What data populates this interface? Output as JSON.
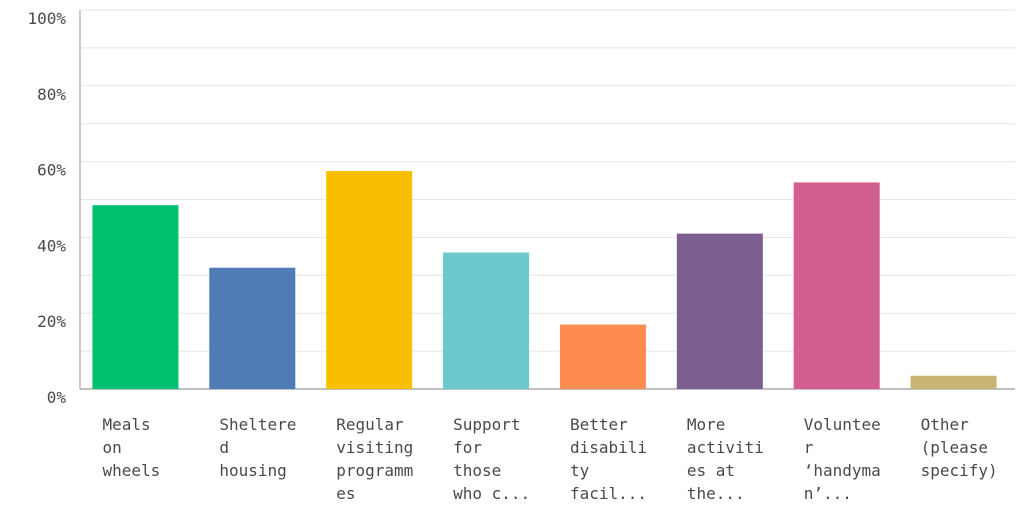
{
  "chart_data": {
    "type": "bar",
    "title": "",
    "xlabel": "",
    "ylabel": "",
    "ylim": [
      0,
      100
    ],
    "y_ticks": [
      {
        "value": 0,
        "label": "0%"
      },
      {
        "value": 20,
        "label": "20%"
      },
      {
        "value": 40,
        "label": "40%"
      },
      {
        "value": 60,
        "label": "60%"
      },
      {
        "value": 80,
        "label": "80%"
      },
      {
        "value": 100,
        "label": "100%"
      }
    ],
    "grid": true,
    "legend": "none",
    "categories": [
      {
        "lines": [
          "Meals",
          "on",
          "wheels"
        ],
        "value": 48.5,
        "color": "#00bf6f"
      },
      {
        "lines": [
          "Sheltere",
          "d",
          "housing"
        ],
        "value": 32,
        "color": "#507cb6"
      },
      {
        "lines": [
          "Regular",
          "visiting",
          "programm",
          "es"
        ],
        "value": 57.5,
        "color": "#f9be00"
      },
      {
        "lines": [
          "Support",
          "for",
          "those",
          "who c..."
        ],
        "value": 36,
        "color": "#6bc8cd"
      },
      {
        "lines": [
          "Better",
          "disabili",
          "ty",
          "facil..."
        ],
        "value": 17,
        "color": "#ff8b4f"
      },
      {
        "lines": [
          "More",
          "activiti",
          "es at",
          "the..."
        ],
        "value": 41,
        "color": "#7d5e90"
      },
      {
        "lines": [
          "Voluntee",
          "r",
          "‘handyma",
          "n’..."
        ],
        "value": 54.5,
        "color": "#d25f90"
      },
      {
        "lines": [
          "Other",
          "(please",
          "specify)"
        ],
        "value": 3.5,
        "color": "#c8b475"
      }
    ]
  }
}
